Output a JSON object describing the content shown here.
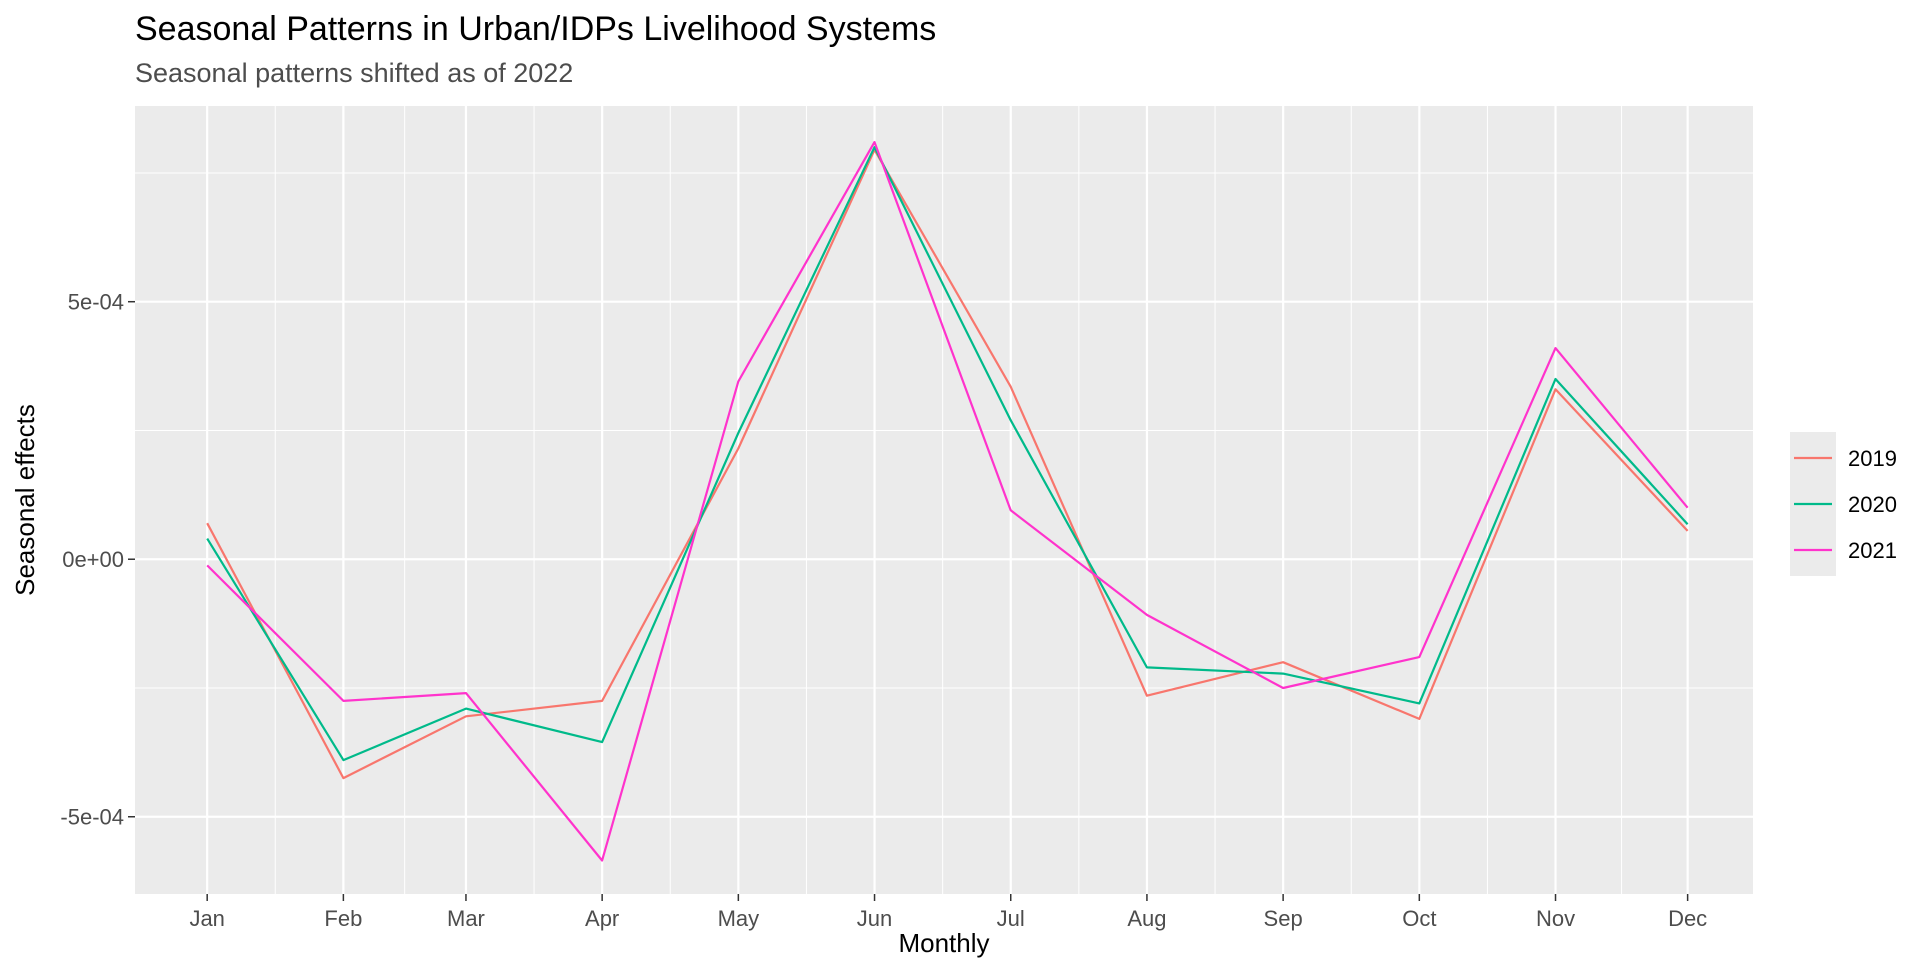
{
  "chart_data": {
    "type": "line",
    "title": "Seasonal Patterns in Urban/IDPs Livelihood Systems",
    "subtitle": "Seasonal patterns shifted as of 2022",
    "xlabel": "Monthly",
    "ylabel": "Seasonal effects",
    "categories": [
      "Jan",
      "Feb",
      "Mar",
      "Apr",
      "May",
      "Jun",
      "Jul",
      "Aug",
      "Sep",
      "Oct",
      "Nov",
      "Dec"
    ],
    "x_values": [
      1,
      2,
      2.9,
      3.9,
      4.9,
      5.9,
      6.9,
      7.9,
      8.9,
      9.9,
      10.9,
      11.87
    ],
    "y_ticks": [
      {
        "value": -0.0005,
        "label": "-5e-04"
      },
      {
        "value": 0,
        "label": "0e+00"
      },
      {
        "value": 0.0005,
        "label": "5e-04"
      }
    ],
    "ylim": [
      -0.00065,
      0.00088
    ],
    "xlim": [
      0.47,
      12.35
    ],
    "grid": true,
    "legend_position": "right",
    "series": [
      {
        "name": "2019",
        "color": "#F8766D",
        "values": [
          7e-05,
          -0.000425,
          -0.000305,
          -0.000275,
          0.000215,
          0.000795,
          0.000335,
          -0.000265,
          -0.0002,
          -0.00031,
          0.00033,
          5.5e-05
        ]
      },
      {
        "name": "2020",
        "color": "#00BA8A",
        "values": [
          4e-05,
          -0.00039,
          -0.00029,
          -0.000355,
          0.000245,
          0.0008,
          0.00027,
          -0.00021,
          -0.000222,
          -0.00028,
          0.00035,
          6.8e-05
        ]
      },
      {
        "name": "2021",
        "color": "#FF33CC",
        "values": [
          -1.2e-05,
          -0.000275,
          -0.00026,
          -0.000585,
          0.000345,
          0.00081,
          9.5e-05,
          -0.000108,
          -0.00025,
          -0.00019,
          0.00041,
          0.0001
        ]
      }
    ]
  }
}
